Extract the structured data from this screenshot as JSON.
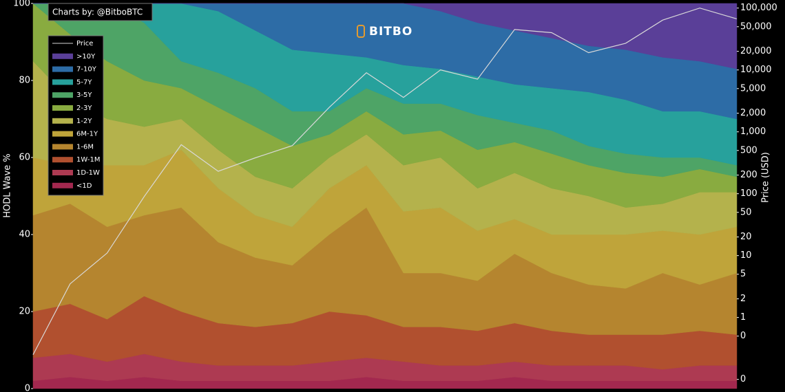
{
  "chart_data": {
    "type": "stacked-area",
    "title": "Charts by: @BitboBTC",
    "watermark": "BITBO",
    "ylabel": "HODL Wave %",
    "y2label": "Price (USD)",
    "categories": [
      null,
      null,
      null,
      null,
      null,
      null,
      null,
      null,
      null,
      null,
      null,
      null,
      null,
      null,
      null,
      null,
      null,
      null,
      null,
      null
    ],
    "ylim": [
      0,
      100
    ],
    "yticks": [
      0,
      20,
      40,
      60,
      80,
      100
    ],
    "y2lim": [
      0.071,
      118800
    ],
    "y2scale": "log",
    "y2ticks": [
      {
        "value": 100000,
        "label": "100,000"
      },
      {
        "value": 50000,
        "label": "50,000"
      },
      {
        "value": 20000,
        "label": "20,000"
      },
      {
        "value": 10000,
        "label": "10,000"
      },
      {
        "value": 5000,
        "label": "5,000"
      },
      {
        "value": 2000,
        "label": "2,000"
      },
      {
        "value": 1000,
        "label": "1,000"
      },
      500,
      200,
      100,
      50,
      20,
      10,
      5,
      2,
      1,
      {
        "value": 0.5,
        "label": "0"
      },
      {
        "value": 0.1,
        "label": "0"
      }
    ],
    "grid": false,
    "legend": "upper left",
    "series": [
      {
        "name": "<1D",
        "color": "#a3284f",
        "values": [
          2,
          3,
          2,
          3,
          2,
          2,
          2,
          2,
          2,
          3,
          2,
          2,
          2,
          3,
          2,
          2,
          2,
          2,
          2,
          2
        ]
      },
      {
        "name": "1D-1W",
        "color": "#ad3a52",
        "values": [
          6,
          6,
          5,
          6,
          5,
          4,
          4,
          4,
          5,
          5,
          5,
          4,
          4,
          4,
          4,
          4,
          4,
          3,
          4,
          4
        ]
      },
      {
        "name": "1W-1M",
        "color": "#b1502f",
        "values": [
          12,
          13,
          11,
          15,
          13,
          11,
          10,
          11,
          13,
          11,
          9,
          10,
          9,
          10,
          9,
          8,
          8,
          9,
          9,
          8
        ]
      },
      {
        "name": "1-6M",
        "color": "#b5852f",
        "values": [
          25,
          26,
          24,
          21,
          27,
          21,
          18,
          15,
          20,
          28,
          14,
          14,
          13,
          18,
          15,
          13,
          12,
          16,
          12,
          16
        ]
      },
      {
        "name": "6M-1Y",
        "color": "#bfa43a",
        "values": [
          15,
          10,
          16,
          13,
          15,
          14,
          11,
          10,
          12,
          11,
          16,
          17,
          13,
          9,
          10,
          13,
          14,
          11,
          13,
          12
        ]
      },
      {
        "name": "1-2Y",
        "color": "#b4b24c",
        "values": [
          25,
          17,
          12,
          10,
          8,
          10,
          10,
          10,
          8,
          8,
          12,
          13,
          11,
          12,
          12,
          10,
          7,
          7,
          11,
          9
        ]
      },
      {
        "name": "2-3Y",
        "color": "#89ab40",
        "values": [
          15,
          17,
          15,
          12,
          8,
          11,
          13,
          11,
          6,
          6,
          8,
          7,
          10,
          8,
          9,
          8,
          9,
          7,
          6,
          4
        ]
      },
      {
        "name": "3-5Y",
        "color": "#4ea466",
        "values": [
          0,
          8,
          15,
          15,
          7,
          9,
          10,
          9,
          6,
          6,
          8,
          7,
          9,
          5,
          6,
          5,
          5,
          5,
          3,
          3
        ]
      },
      {
        "name": "5-7Y",
        "color": "#27a19c",
        "values": [
          0,
          0,
          0,
          5,
          15,
          16,
          15,
          16,
          15,
          8,
          10,
          9,
          10,
          10,
          11,
          14,
          14,
          12,
          12,
          12
        ]
      },
      {
        "name": "7-10Y",
        "color": "#2d6ca6",
        "values": [
          0,
          0,
          0,
          0,
          0,
          2,
          7,
          12,
          13,
          14,
          16,
          15,
          14,
          14,
          13,
          12,
          13,
          14,
          13,
          13
        ]
      },
      {
        "name": ">10Y",
        "color": "#5a3f98",
        "values": [
          0,
          0,
          0,
          0,
          0,
          0,
          0,
          0,
          0,
          0,
          0,
          2,
          5,
          7,
          9,
          11,
          12,
          14,
          15,
          17
        ]
      },
      {
        "name": "Price",
        "color": "#d9d9d9",
        "axis": "y2",
        "values": [
          0.25,
          3.5,
          11,
          90,
          620,
          230,
          380,
          600,
          2500,
          9000,
          3600,
          10000,
          7100,
          45000,
          40000,
          19000,
          27000,
          64000,
          100000,
          67000
        ]
      }
    ]
  }
}
